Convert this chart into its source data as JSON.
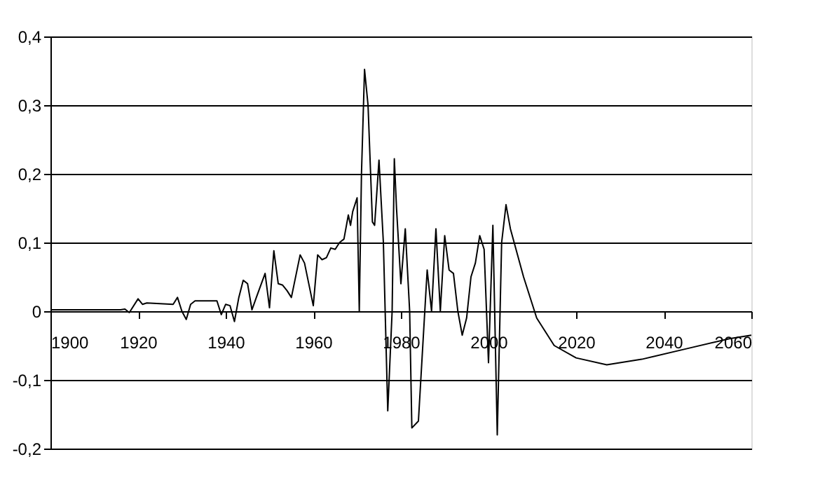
{
  "chart_data": {
    "type": "line",
    "line_style": "solid",
    "marker": "none",
    "grid": "y",
    "x": [
      1900,
      1902,
      1908,
      1916,
      1917,
      1918,
      1920,
      1921,
      1922,
      1928,
      1929,
      1930,
      1931,
      1932,
      1933,
      1938,
      1939,
      1940,
      1941,
      1942,
      1943,
      1944,
      1945,
      1946,
      1947,
      1949,
      1950,
      1951,
      1952,
      1953,
      1954,
      1955,
      1957,
      1958,
      1960,
      1961,
      1962,
      1963,
      1964,
      1965,
      1966,
      1967,
      1968,
      1968.5,
      1969,
      1970,
      1970.5,
      1971,
      1971.7,
      1972.5,
      1973.5,
      1974,
      1975,
      1976,
      1977,
      1978,
      1978.5,
      1979,
      1980,
      1981,
      1982,
      1982.5,
      1984,
      1985,
      1986,
      1987,
      1988,
      1989,
      1990,
      1991,
      1992,
      1993,
      1994,
      1995,
      1996,
      1997,
      1998,
      1999,
      2000,
      2001,
      2002,
      2003,
      2004,
      2005,
      2008,
      2011,
      2015,
      2020,
      2027,
      2035,
      2045,
      2055,
      2060
    ],
    "series": [
      {
        "color": "#000000",
        "values": [
          0.002,
          0.002,
          0.002,
          0.002,
          0.003,
          -0.002,
          0.018,
          0.01,
          0.012,
          0.01,
          0.02,
          0.0,
          -0.012,
          0.01,
          0.015,
          0.015,
          -0.005,
          0.01,
          0.008,
          -0.015,
          0.02,
          0.045,
          0.04,
          0.002,
          0.02,
          0.055,
          0.005,
          0.088,
          0.04,
          0.038,
          0.03,
          0.02,
          0.082,
          0.07,
          0.008,
          0.082,
          0.075,
          0.078,
          0.092,
          0.09,
          0.1,
          0.105,
          0.14,
          0.125,
          0.145,
          0.165,
          0.0,
          0.2,
          0.352,
          0.3,
          0.13,
          0.125,
          0.22,
          0.1,
          -0.145,
          0.0,
          0.222,
          0.15,
          0.04,
          0.12,
          0.0,
          -0.17,
          -0.16,
          -0.05,
          0.06,
          0.0,
          0.12,
          0.0,
          0.11,
          0.06,
          0.055,
          0.0,
          -0.035,
          -0.01,
          0.05,
          0.07,
          0.11,
          0.09,
          -0.075,
          0.125,
          -0.18,
          0.1,
          0.155,
          0.12,
          0.05,
          -0.01,
          -0.05,
          -0.068,
          -0.078,
          -0.07,
          -0.055,
          -0.04,
          -0.035
        ]
      }
    ],
    "xlim": [
      1900,
      2060
    ],
    "xticks": [
      1900,
      1920,
      1940,
      1960,
      1980,
      2000,
      2020,
      2040,
      2060
    ],
    "ylim": [
      -0.2,
      0.4
    ],
    "yticks": [
      {
        "value": -0.2,
        "label": "-0,2"
      },
      {
        "value": -0.1,
        "label": "-0,1"
      },
      {
        "value": 0,
        "label": "0"
      },
      {
        "value": 0.1,
        "label": "0,1"
      },
      {
        "value": 0.2,
        "label": "0,2"
      },
      {
        "value": 0.3,
        "label": "0,3"
      },
      {
        "value": 0.4,
        "label": "0,4"
      }
    ]
  }
}
